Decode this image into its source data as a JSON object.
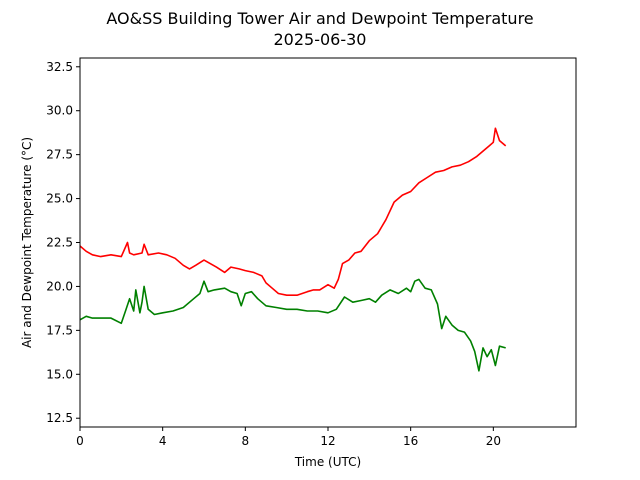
{
  "chart_data": {
    "type": "line",
    "title": "AO&SS Building Tower Air and Dewpoint Temperature",
    "subtitle": "2025-06-30",
    "xlabel": "Time (UTC)",
    "ylabel": "Air and Dewpoint Temperature (°C)",
    "xlim": [
      0,
      24
    ],
    "ylim": [
      12,
      33
    ],
    "xticks": [
      0,
      4,
      8,
      12,
      16,
      20
    ],
    "yticks": [
      12.5,
      15.0,
      17.5,
      20.0,
      22.5,
      25.0,
      27.5,
      30.0,
      32.5
    ],
    "grid": false,
    "series": [
      {
        "color": "#ff0000",
        "x": [
          0.0,
          0.3,
          0.6,
          1.0,
          1.5,
          2.0,
          2.3,
          2.4,
          2.6,
          3.0,
          3.1,
          3.3,
          3.8,
          4.2,
          4.6,
          5.0,
          5.3,
          5.6,
          6.0,
          6.3,
          6.6,
          7.0,
          7.3,
          7.7,
          8.0,
          8.4,
          8.8,
          9.0,
          9.3,
          9.6,
          10.0,
          10.5,
          11.0,
          11.3,
          11.6,
          12.0,
          12.3,
          12.5,
          12.7,
          13.0,
          13.3,
          13.6,
          14.0,
          14.4,
          14.8,
          15.2,
          15.6,
          16.0,
          16.4,
          16.8,
          17.2,
          17.6,
          18.0,
          18.4,
          18.8,
          19.2,
          19.5,
          19.8,
          20.0,
          20.1,
          20.3,
          20.6
        ],
        "y": [
          22.3,
          22.0,
          21.8,
          21.7,
          21.8,
          21.7,
          22.5,
          21.9,
          21.8,
          21.9,
          22.4,
          21.8,
          21.9,
          21.8,
          21.6,
          21.2,
          21.0,
          21.2,
          21.5,
          21.3,
          21.1,
          20.8,
          21.1,
          21.0,
          20.9,
          20.8,
          20.6,
          20.2,
          19.9,
          19.6,
          19.5,
          19.5,
          19.7,
          19.8,
          19.8,
          20.1,
          19.9,
          20.4,
          21.3,
          21.5,
          21.9,
          22.0,
          22.6,
          23.0,
          23.8,
          24.8,
          25.2,
          25.4,
          25.9,
          26.2,
          26.5,
          26.6,
          26.8,
          26.9,
          27.1,
          27.4,
          27.7,
          28.0,
          28.2,
          29.0,
          28.3,
          28.0
        ]
      },
      {
        "color": "#008000",
        "x": [
          0.0,
          0.3,
          0.6,
          1.0,
          1.5,
          2.0,
          2.2,
          2.4,
          2.6,
          2.7,
          2.9,
          3.0,
          3.1,
          3.3,
          3.6,
          4.0,
          4.5,
          5.0,
          5.5,
          5.8,
          6.0,
          6.2,
          6.5,
          7.0,
          7.3,
          7.6,
          7.8,
          8.0,
          8.3,
          8.6,
          9.0,
          9.5,
          10.0,
          10.5,
          11.0,
          11.5,
          12.0,
          12.4,
          12.8,
          13.2,
          13.6,
          14.0,
          14.3,
          14.6,
          15.0,
          15.4,
          15.8,
          16.0,
          16.2,
          16.4,
          16.7,
          17.0,
          17.3,
          17.5,
          17.7,
          18.0,
          18.3,
          18.6,
          18.9,
          19.1,
          19.3,
          19.5,
          19.7,
          19.9,
          20.1,
          20.3,
          20.6
        ],
        "y": [
          18.1,
          18.3,
          18.2,
          18.2,
          18.2,
          17.9,
          18.6,
          19.3,
          18.6,
          19.8,
          18.5,
          19.1,
          20.0,
          18.7,
          18.4,
          18.5,
          18.6,
          18.8,
          19.3,
          19.6,
          20.3,
          19.7,
          19.8,
          19.9,
          19.7,
          19.6,
          18.9,
          19.6,
          19.7,
          19.3,
          18.9,
          18.8,
          18.7,
          18.7,
          18.6,
          18.6,
          18.5,
          18.7,
          19.4,
          19.1,
          19.2,
          19.3,
          19.1,
          19.5,
          19.8,
          19.6,
          19.9,
          19.7,
          20.3,
          20.4,
          19.9,
          19.8,
          19.0,
          17.6,
          18.3,
          17.8,
          17.5,
          17.4,
          16.9,
          16.3,
          15.2,
          16.5,
          16.0,
          16.4,
          15.5,
          16.6,
          16.5
        ]
      }
    ]
  }
}
